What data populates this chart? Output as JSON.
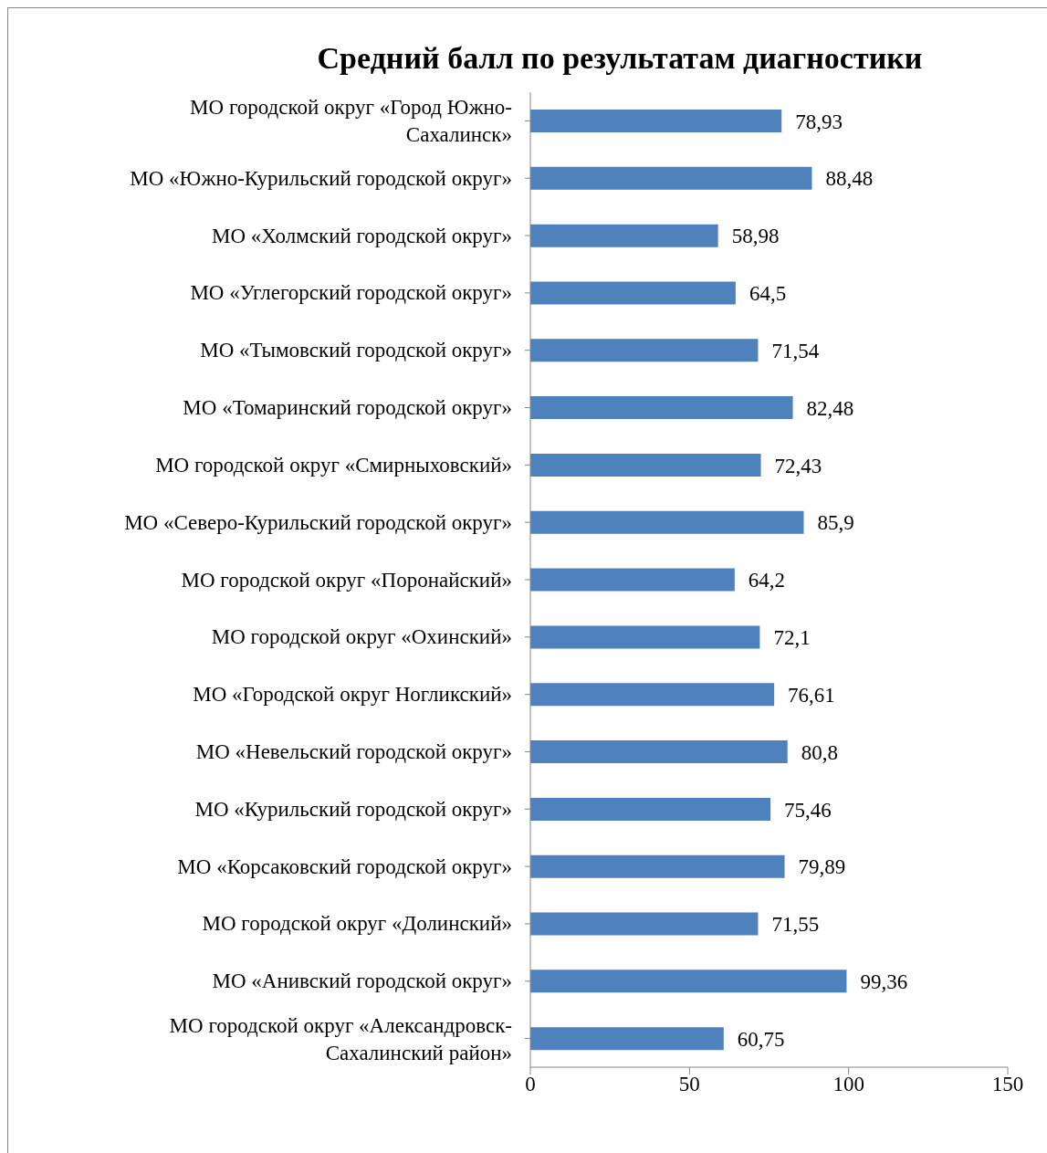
{
  "chart_data": {
    "type": "bar",
    "orientation": "horizontal",
    "title": "Средний балл по результатам диагностики",
    "categories": [
      "МО городской округ «Город Южно-Сахалинск»",
      "МО «Южно-Курильский городской округ»",
      "МО «Холмский городской округ»",
      "МО «Углегорский городской округ»",
      "МО «Тымовский городской округ»",
      "МО «Томаринский городской округ»",
      "МО городской округ «Смирныховский»",
      "МО «Северо-Курильский городской округ»",
      "МО городской округ «Поронайский»",
      "МО городской округ «Охинский»",
      "МО «Городской округ Ногликский»",
      "МО «Невельский городской округ»",
      "МО «Курильский городской округ»",
      "МО «Корсаковский городской округ»",
      "МО городской округ «Долинский»",
      "МО «Анивский городской округ»",
      "МО городской округ «Александровск-Сахалинский район»"
    ],
    "values": [
      78.93,
      88.48,
      58.98,
      64.5,
      71.54,
      82.48,
      72.43,
      85.9,
      64.2,
      72.1,
      76.61,
      80.8,
      75.46,
      79.89,
      71.55,
      99.36,
      60.75
    ],
    "value_labels": [
      "78,93",
      "88,48",
      "58,98",
      "64,5",
      "71,54",
      "82,48",
      "72,43",
      "85,9",
      "64,2",
      "72,1",
      "76,61",
      "80,8",
      "75,46",
      "79,89",
      "71,55",
      "99,36",
      "60,75"
    ],
    "color": "#4f81bd",
    "xlim": [
      0,
      150
    ],
    "xticks": [
      0,
      50,
      100,
      150
    ],
    "grid": false,
    "legend": false
  }
}
